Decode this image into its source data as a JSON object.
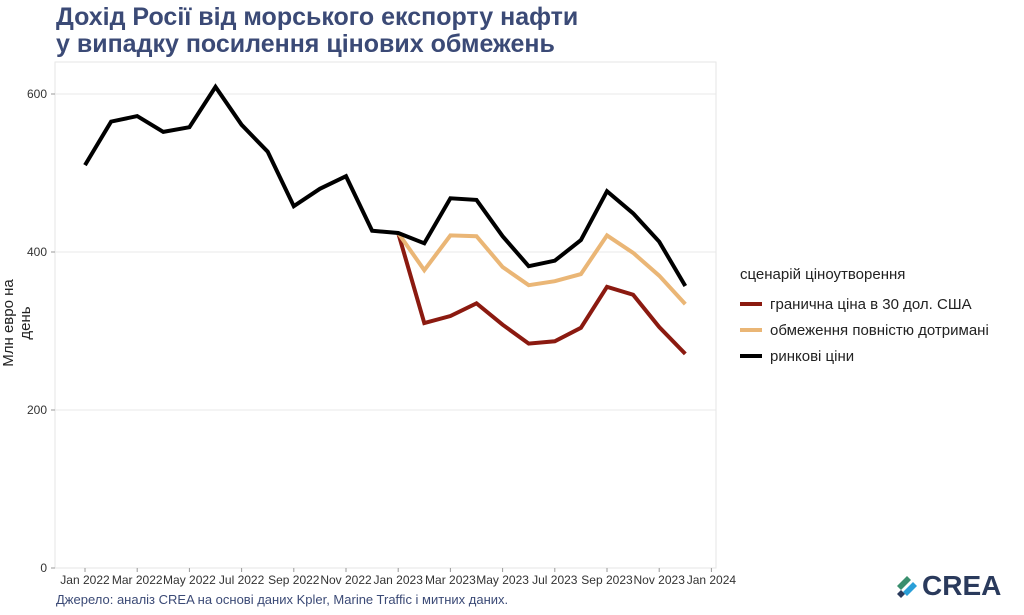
{
  "title": [
    "Дохід Росії від морського експорту нафти",
    "у випадку посилення цінових обмежень"
  ],
  "source": "Джерело: аналіз CREA на основі даних Kpler, Marine Traffic і митних даних.",
  "logo": "CREA",
  "chart_data": {
    "type": "line",
    "title": "Дохід Росії від морського експорту нафти у випадку посилення цінових обмежень",
    "xlabel": "",
    "ylabel": "Млн евро на день",
    "ylim": [
      0,
      640
    ],
    "yticks": [
      0,
      200,
      400,
      600
    ],
    "xtick_labels": [
      "Jan 2022",
      "Mar 2022",
      "May 2022",
      "Jul 2022",
      "Sep 2022",
      "Nov 2022",
      "Jan 2023",
      "Mar 2023",
      "May 2023",
      "Jul 2023",
      "Sep 2023",
      "Nov 2023",
      "Jan 2024"
    ],
    "legend_title": "сценарій ціноутворення",
    "legend_position": "right",
    "x": [
      "2022-01",
      "2022-02",
      "2022-03",
      "2022-04",
      "2022-05",
      "2022-06",
      "2022-07",
      "2022-08",
      "2022-09",
      "2022-10",
      "2022-11",
      "2022-12",
      "2023-01",
      "2023-02",
      "2023-03",
      "2023-04",
      "2023-05",
      "2023-06",
      "2023-07",
      "2023-08",
      "2023-09",
      "2023-10",
      "2023-11",
      "2023-12"
    ],
    "series": [
      {
        "name": "гранична ціна в 30 дол. США",
        "color": "#8b1a10",
        "values": [
          null,
          null,
          null,
          null,
          null,
          null,
          null,
          null,
          null,
          null,
          null,
          null,
          424,
          310,
          319,
          335,
          308,
          284,
          287,
          304,
          356,
          346,
          305,
          271
        ]
      },
      {
        "name": "обмеження повністю дотримані",
        "color": "#eab676",
        "values": [
          null,
          null,
          null,
          null,
          null,
          null,
          null,
          null,
          null,
          null,
          null,
          null,
          424,
          377,
          421,
          420,
          381,
          358,
          363,
          372,
          421,
          399,
          370,
          334
        ]
      },
      {
        "name": "ринкові ціни",
        "color": "#000000",
        "values": [
          510,
          565,
          572,
          552,
          558,
          609,
          561,
          527,
          458,
          480,
          496,
          427,
          424,
          411,
          468,
          466,
          420,
          382,
          389,
          415,
          477,
          449,
          413,
          357
        ]
      }
    ]
  }
}
